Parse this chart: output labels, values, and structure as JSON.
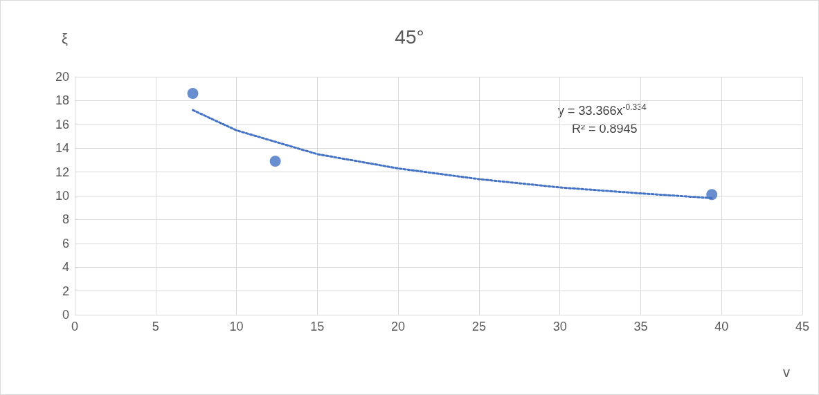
{
  "chart_data": {
    "type": "scatter",
    "title": "45°",
    "xlabel": "v",
    "ylabel": "ξ",
    "xlim": [
      0,
      45
    ],
    "xticks": [
      0,
      5,
      10,
      15,
      20,
      25,
      30,
      35,
      40,
      45
    ],
    "ylim": [
      0,
      20
    ],
    "yticks": [
      0,
      2,
      4,
      6,
      8,
      10,
      12,
      14,
      16,
      18,
      20
    ],
    "grid": true,
    "marker": "circle",
    "series": [
      {
        "color": "#4472c4",
        "x": [
          7.3,
          12.4,
          39.4
        ],
        "values": [
          18.6,
          12.9,
          10.1
        ]
      },
      {
        "type": "line",
        "color": "#4472c4",
        "line_style": "dotted",
        "marker": "none",
        "x": [
          7.3,
          10,
          15,
          20,
          25,
          30,
          35,
          39.4
        ],
        "values": [
          17.2,
          15.5,
          13.5,
          12.3,
          11.4,
          10.7,
          10.2,
          9.8
        ]
      }
    ],
    "annotations": [
      "y = 33.366x$^{-0.334}$",
      "R² = 0.8945"
    ]
  }
}
